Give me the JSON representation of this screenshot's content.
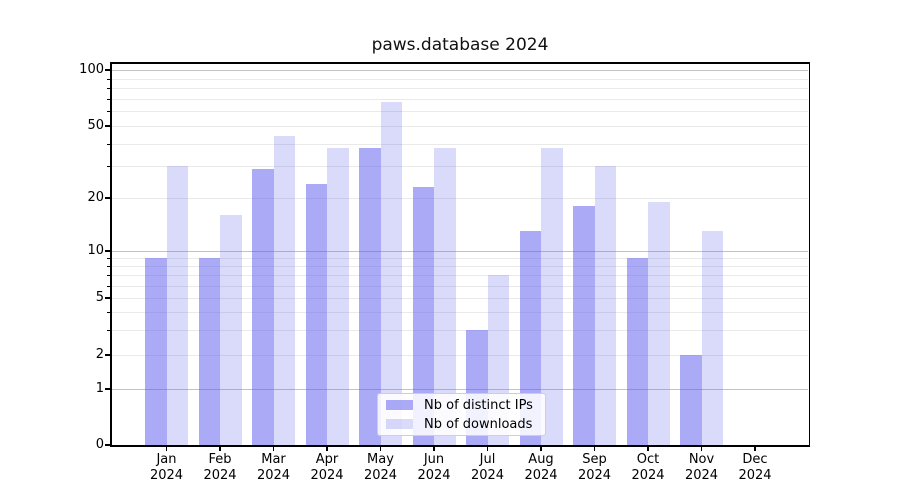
{
  "chart_data": {
    "type": "bar",
    "title": "paws.database 2024",
    "scale": "log-like (symlog), majors at 1/10/100",
    "grid": "both (major darker, minor lighter)",
    "legend_position": "lower center",
    "categories": [
      "Jan",
      "Feb",
      "Mar",
      "Apr",
      "May",
      "Jun",
      "Jul",
      "Aug",
      "Sep",
      "Oct",
      "Nov",
      "Dec"
    ],
    "x_sublabel": "2024",
    "series": [
      {
        "name": "Nb of distinct IPs",
        "color": "rgba(85,85,238,0.50)",
        "values": [
          9,
          9,
          29,
          24,
          38,
          23,
          3,
          13,
          18,
          9,
          2,
          0
        ]
      },
      {
        "name": "Nb of downloads",
        "color": "rgba(85,85,238,0.22)",
        "values": [
          30,
          16,
          44,
          38,
          67,
          38,
          7,
          38,
          30,
          19,
          13,
          0
        ]
      }
    ],
    "ytick_labels": [
      "100",
      "50",
      "20",
      "10",
      "5",
      "2",
      "1",
      "0"
    ],
    "yticks": [
      100,
      50,
      20,
      10,
      5,
      2,
      1,
      0
    ],
    "ylim": [
      0,
      110
    ]
  }
}
